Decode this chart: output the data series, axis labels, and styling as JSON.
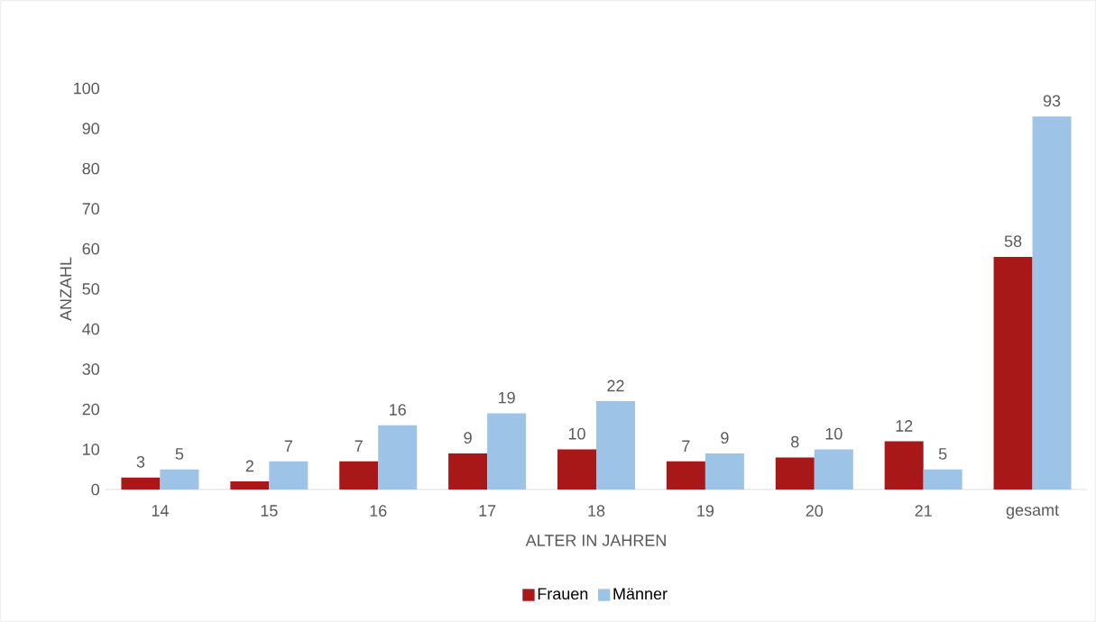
{
  "chart_data": {
    "type": "bar",
    "xlabel": "ALTER IN JAHREN",
    "ylabel": "ANZAHL",
    "categories": [
      "14",
      "15",
      "16",
      "17",
      "18",
      "19",
      "20",
      "21",
      "gesamt"
    ],
    "series": [
      {
        "name": "Frauen",
        "color": "#a81818",
        "values": [
          3,
          2,
          7,
          9,
          10,
          7,
          8,
          12,
          58
        ]
      },
      {
        "name": "Männer",
        "color": "#9dc3e6",
        "values": [
          5,
          7,
          16,
          19,
          22,
          9,
          10,
          5,
          93
        ]
      }
    ],
    "ylim": [
      0,
      100
    ],
    "yticks": [
      0,
      10,
      20,
      30,
      40,
      50,
      60,
      70,
      80,
      90,
      100
    ],
    "data_labels": true,
    "legend": "bottom",
    "grid": false
  }
}
